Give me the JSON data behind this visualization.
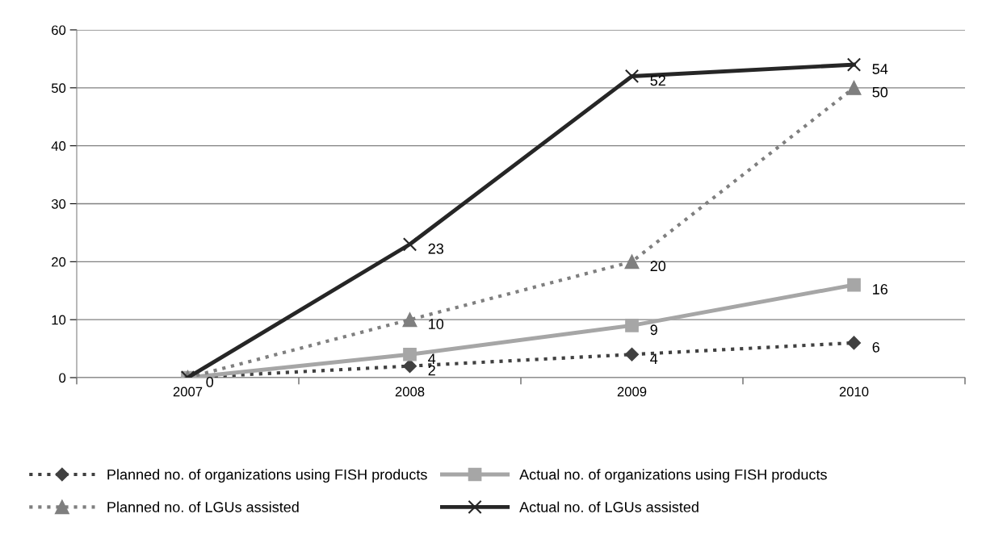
{
  "chart_data": {
    "type": "line",
    "categories": [
      "2007",
      "2008",
      "2009",
      "2010"
    ],
    "series": [
      {
        "name": "Planned no. of organizations using FISH products",
        "color": "#404040",
        "values": [
          0,
          2,
          4,
          6
        ],
        "value_labels": [
          null,
          "2",
          "4",
          "6"
        ],
        "marker": "diamond",
        "line_style": "dotted"
      },
      {
        "name": "Actual no. of organizations using FISH products",
        "color": "#a6a6a6",
        "values": [
          0,
          4,
          9,
          16
        ],
        "value_labels": [
          null,
          "4",
          "9",
          "16"
        ],
        "marker": "square",
        "line_style": "solid"
      },
      {
        "name": "Planned no. of LGUs assisted",
        "color": "#7f7f7f",
        "values": [
          0,
          10,
          20,
          50
        ],
        "value_labels": [
          "0",
          "10",
          "20",
          "50"
        ],
        "marker": "triangle",
        "line_style": "dotted"
      },
      {
        "name": "Actual no. of LGUs assisted",
        "color": "#262626",
        "values": [
          0,
          23,
          52,
          54
        ],
        "value_labels": [
          null,
          "23",
          "52",
          "54"
        ],
        "marker": "cross",
        "line_style": "solid"
      }
    ],
    "ylim": [
      0,
      60
    ],
    "yticks": [
      0,
      10,
      20,
      30,
      40,
      50,
      60
    ],
    "grid": "y",
    "legend": "bottom"
  }
}
